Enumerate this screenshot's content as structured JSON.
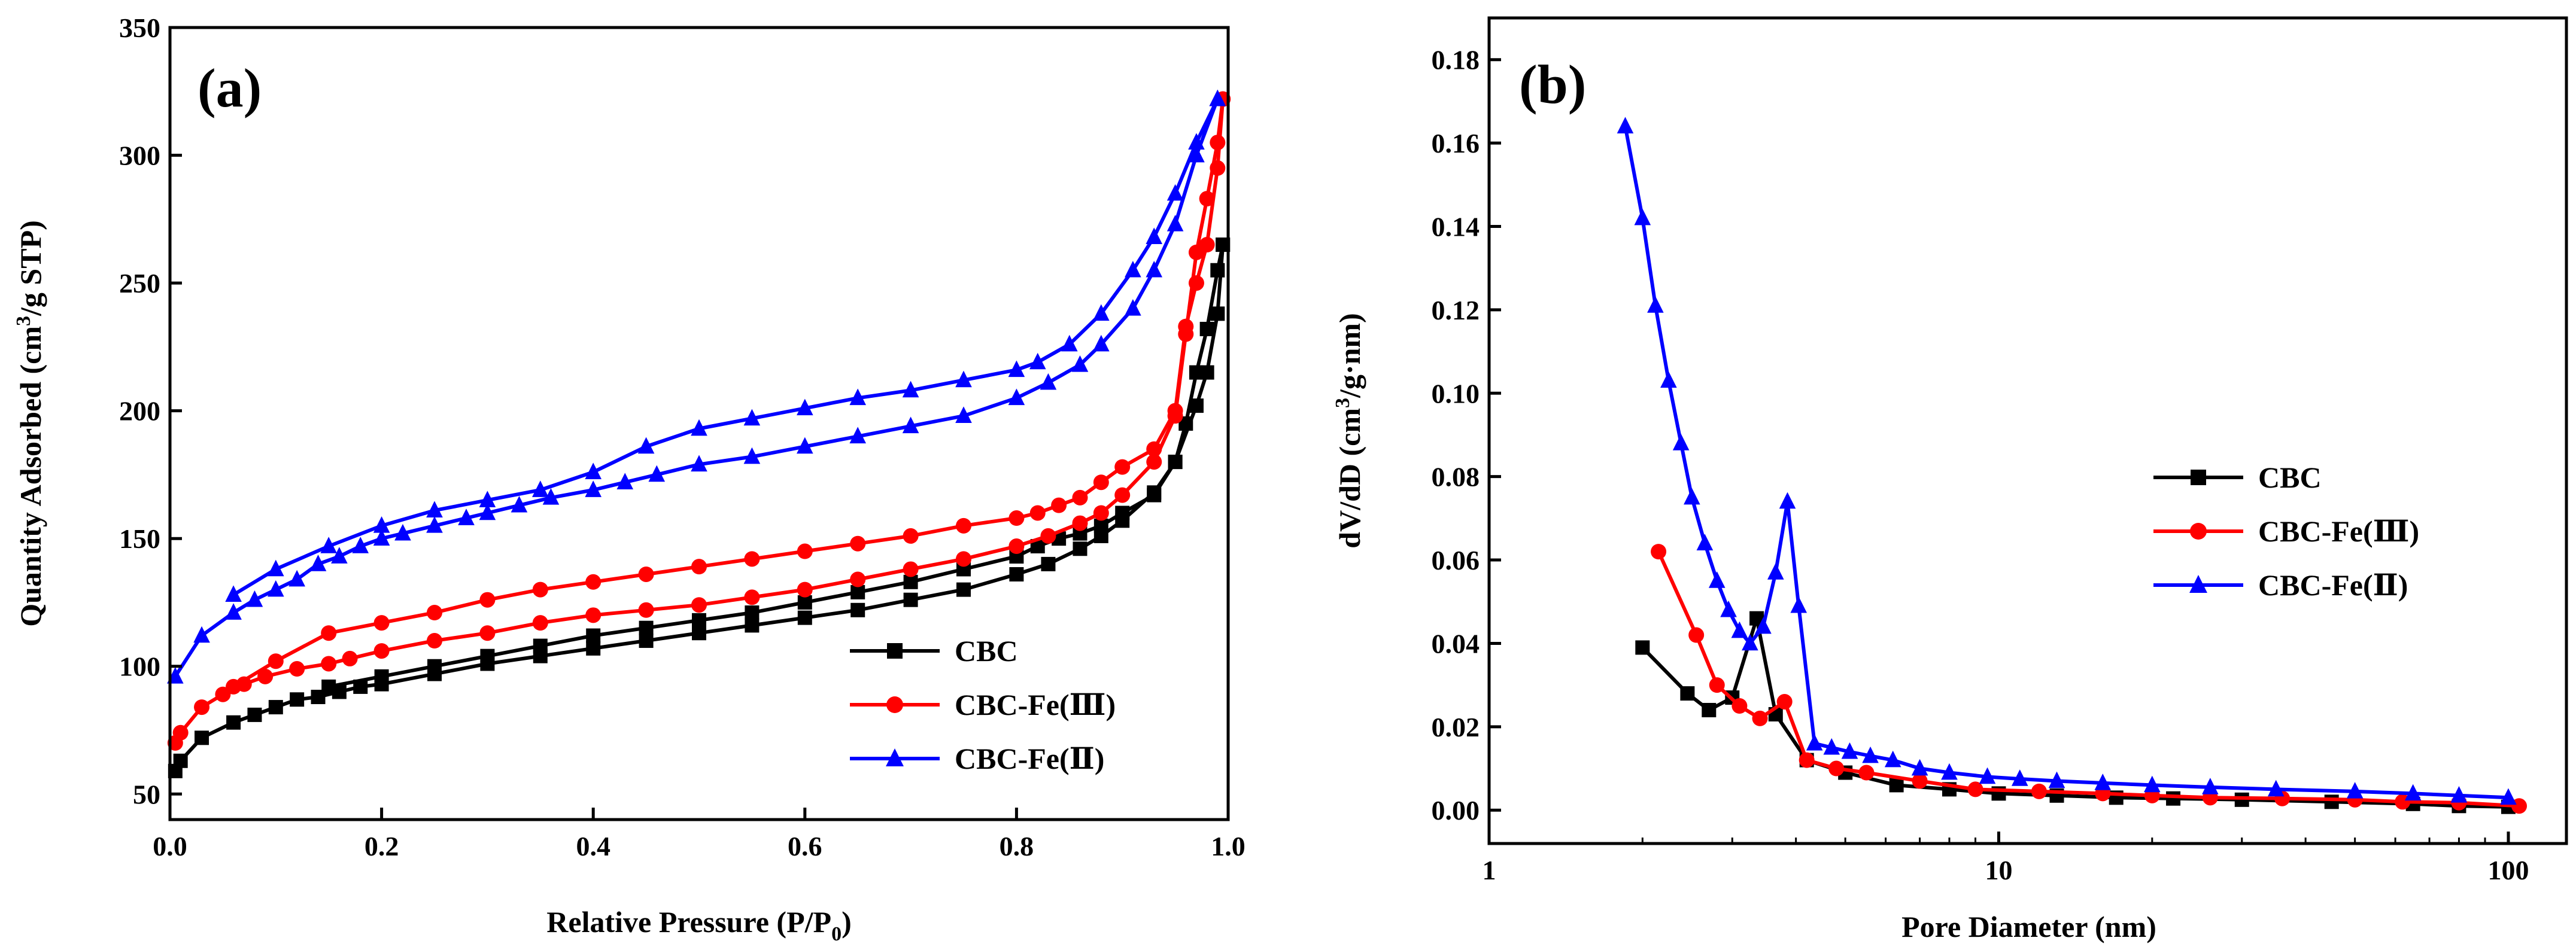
{
  "chart_data": [
    {
      "type": "line",
      "panel_label": "(a)",
      "xlabel": "Relative Pressure (P/P",
      "xlabel_sub": "0",
      "xlabel_end": ")",
      "ylabel_pre": "Quantity Adsorbed (cm",
      "ylabel_sup": "3",
      "ylabel_post": "/g STP)",
      "xlim": [
        0,
        1.0
      ],
      "ylim": [
        40,
        350
      ],
      "xticks": [
        0.0,
        0.2,
        0.4,
        0.6,
        0.8,
        1.0
      ],
      "xtick_labels": [
        "0.0",
        "0.2",
        "0.4",
        "0.6",
        "0.8",
        "1.0"
      ],
      "yticks": [
        50,
        100,
        150,
        200,
        250,
        300,
        350
      ],
      "ytick_labels": [
        "50",
        "100",
        "150",
        "200",
        "250",
        "300",
        "350"
      ],
      "legend_position": "bottom-right",
      "series": [
        {
          "name": "CBC",
          "color": "#000000",
          "marker": "square",
          "adsorption": [
            [
              0.005,
              59
            ],
            [
              0.01,
              63
            ],
            [
              0.03,
              72
            ],
            [
              0.06,
              78
            ],
            [
              0.08,
              81
            ],
            [
              0.1,
              84
            ],
            [
              0.12,
              87
            ],
            [
              0.14,
              88
            ],
            [
              0.16,
              90
            ],
            [
              0.18,
              92
            ],
            [
              0.2,
              93
            ],
            [
              0.25,
              97
            ],
            [
              0.3,
              101
            ],
            [
              0.35,
              104
            ],
            [
              0.4,
              107
            ],
            [
              0.45,
              110
            ],
            [
              0.5,
              113
            ],
            [
              0.55,
              116
            ],
            [
              0.6,
              119
            ],
            [
              0.65,
              122
            ],
            [
              0.7,
              126
            ],
            [
              0.75,
              130
            ],
            [
              0.8,
              136
            ],
            [
              0.83,
              140
            ],
            [
              0.86,
              146
            ],
            [
              0.88,
              151
            ],
            [
              0.9,
              157
            ],
            [
              0.93,
              168
            ],
            [
              0.95,
              180
            ],
            [
              0.97,
              202
            ],
            [
              0.98,
              215
            ],
            [
              0.99,
              238
            ],
            [
              0.995,
              265
            ]
          ],
          "desorption": [
            [
              0.995,
              265
            ],
            [
              0.99,
              255
            ],
            [
              0.98,
              232
            ],
            [
              0.97,
              215
            ],
            [
              0.96,
              195
            ],
            [
              0.95,
              180
            ],
            [
              0.93,
              167
            ],
            [
              0.9,
              160
            ],
            [
              0.88,
              155
            ],
            [
              0.86,
              152
            ],
            [
              0.84,
              150
            ],
            [
              0.82,
              147
            ],
            [
              0.8,
              143
            ],
            [
              0.75,
              138
            ],
            [
              0.7,
              133
            ],
            [
              0.65,
              129
            ],
            [
              0.6,
              125
            ],
            [
              0.55,
              121
            ],
            [
              0.5,
              118
            ],
            [
              0.45,
              115
            ],
            [
              0.4,
              112
            ],
            [
              0.35,
              108
            ],
            [
              0.3,
              104
            ],
            [
              0.25,
              100
            ],
            [
              0.2,
              96
            ],
            [
              0.15,
              92
            ]
          ]
        },
        {
          "name": "CBC-Fe(Ⅲ)",
          "color": "#ff0000",
          "marker": "circle",
          "adsorption": [
            [
              0.005,
              70
            ],
            [
              0.01,
              74
            ],
            [
              0.03,
              84
            ],
            [
              0.05,
              89
            ],
            [
              0.07,
              93
            ],
            [
              0.09,
              96
            ],
            [
              0.12,
              99
            ],
            [
              0.15,
              101
            ],
            [
              0.17,
              103
            ],
            [
              0.2,
              106
            ],
            [
              0.25,
              110
            ],
            [
              0.3,
              113
            ],
            [
              0.35,
              117
            ],
            [
              0.4,
              120
            ],
            [
              0.45,
              122
            ],
            [
              0.5,
              124
            ],
            [
              0.55,
              127
            ],
            [
              0.6,
              130
            ],
            [
              0.65,
              134
            ],
            [
              0.7,
              138
            ],
            [
              0.75,
              142
            ],
            [
              0.8,
              147
            ],
            [
              0.83,
              151
            ],
            [
              0.86,
              156
            ],
            [
              0.88,
              160
            ],
            [
              0.9,
              167
            ],
            [
              0.93,
              180
            ],
            [
              0.95,
              198
            ],
            [
              0.96,
              230
            ],
            [
              0.97,
              262
            ],
            [
              0.98,
              283
            ],
            [
              0.99,
              305
            ],
            [
              0.995,
              322
            ]
          ],
          "desorption": [
            [
              0.995,
              322
            ],
            [
              0.99,
              295
            ],
            [
              0.98,
              265
            ],
            [
              0.97,
              250
            ],
            [
              0.96,
              233
            ],
            [
              0.95,
              200
            ],
            [
              0.93,
              185
            ],
            [
              0.9,
              178
            ],
            [
              0.88,
              172
            ],
            [
              0.86,
              166
            ],
            [
              0.84,
              163
            ],
            [
              0.82,
              160
            ],
            [
              0.8,
              158
            ],
            [
              0.75,
              155
            ],
            [
              0.7,
              151
            ],
            [
              0.65,
              148
            ],
            [
              0.6,
              145
            ],
            [
              0.55,
              142
            ],
            [
              0.5,
              139
            ],
            [
              0.45,
              136
            ],
            [
              0.4,
              133
            ],
            [
              0.35,
              130
            ],
            [
              0.3,
              126
            ],
            [
              0.25,
              121
            ],
            [
              0.2,
              117
            ],
            [
              0.15,
              113
            ],
            [
              0.1,
              102
            ],
            [
              0.06,
              92
            ]
          ]
        },
        {
          "name": "CBC-Fe(Ⅱ)",
          "color": "#0000ff",
          "marker": "triangle",
          "adsorption": [
            [
              0.005,
              96
            ],
            [
              0.03,
              112
            ],
            [
              0.06,
              121
            ],
            [
              0.08,
              126
            ],
            [
              0.1,
              130
            ],
            [
              0.12,
              134
            ],
            [
              0.14,
              140
            ],
            [
              0.16,
              143
            ],
            [
              0.18,
              147
            ],
            [
              0.2,
              150
            ],
            [
              0.22,
              152
            ],
            [
              0.25,
              155
            ],
            [
              0.28,
              158
            ],
            [
              0.3,
              160
            ],
            [
              0.33,
              163
            ],
            [
              0.36,
              166
            ],
            [
              0.4,
              169
            ],
            [
              0.43,
              172
            ],
            [
              0.46,
              175
            ],
            [
              0.5,
              179
            ],
            [
              0.55,
              182
            ],
            [
              0.6,
              186
            ],
            [
              0.65,
              190
            ],
            [
              0.7,
              194
            ],
            [
              0.75,
              198
            ],
            [
              0.8,
              205
            ],
            [
              0.83,
              211
            ],
            [
              0.86,
              218
            ],
            [
              0.88,
              226
            ],
            [
              0.91,
              240
            ],
            [
              0.93,
              255
            ],
            [
              0.95,
              273
            ],
            [
              0.97,
              300
            ],
            [
              0.99,
              322
            ]
          ],
          "desorption": [
            [
              0.99,
              322
            ],
            [
              0.97,
              305
            ],
            [
              0.95,
              285
            ],
            [
              0.93,
              268
            ],
            [
              0.91,
              255
            ],
            [
              0.88,
              238
            ],
            [
              0.85,
              226
            ],
            [
              0.82,
              219
            ],
            [
              0.8,
              216
            ],
            [
              0.75,
              212
            ],
            [
              0.7,
              208
            ],
            [
              0.65,
              205
            ],
            [
              0.6,
              201
            ],
            [
              0.55,
              197
            ],
            [
              0.5,
              193
            ],
            [
              0.45,
              186
            ],
            [
              0.4,
              176
            ],
            [
              0.35,
              169
            ],
            [
              0.3,
              165
            ],
            [
              0.25,
              161
            ],
            [
              0.2,
              155
            ],
            [
              0.15,
              147
            ],
            [
              0.1,
              138
            ],
            [
              0.06,
              128
            ]
          ]
        }
      ]
    },
    {
      "type": "line",
      "panel_label": "(b)",
      "xlabel": "Pore Diameter (nm)",
      "ylabel_pre": "dV/dD (cm",
      "ylabel_sup": "3",
      "ylabel_post": "/g·nm)",
      "xscale": "log",
      "xlim": [
        1,
        130
      ],
      "ylim": [
        -0.008,
        0.19
      ],
      "xticks": [
        1,
        10,
        100
      ],
      "xtick_labels": [
        "1",
        "10",
        "100"
      ],
      "yticks": [
        0.0,
        0.02,
        0.04,
        0.06,
        0.08,
        0.1,
        0.12,
        0.14,
        0.16,
        0.18
      ],
      "ytick_labels": [
        "0.00",
        "0.02",
        "0.04",
        "0.06",
        "0.08",
        "0.10",
        "0.12",
        "0.14",
        "0.16",
        "0.18"
      ],
      "legend_position": "center-right",
      "series": [
        {
          "name": "CBC",
          "color": "#000000",
          "marker": "square",
          "points": [
            [
              2.0,
              0.039
            ],
            [
              2.45,
              0.028
            ],
            [
              2.7,
              0.024
            ],
            [
              3.0,
              0.027
            ],
            [
              3.35,
              0.046
            ],
            [
              3.65,
              0.023
            ],
            [
              4.2,
              0.012
            ],
            [
              5.0,
              0.009
            ],
            [
              6.3,
              0.006
            ],
            [
              8.0,
              0.005
            ],
            [
              10,
              0.004
            ],
            [
              13,
              0.0035
            ],
            [
              17,
              0.003
            ],
            [
              22,
              0.0028
            ],
            [
              30,
              0.0025
            ],
            [
              45,
              0.002
            ],
            [
              65,
              0.0015
            ],
            [
              80,
              0.001
            ],
            [
              100,
              0.0008
            ]
          ]
        },
        {
          "name": "CBC-Fe(Ⅲ)",
          "color": "#ff0000",
          "marker": "circle",
          "points": [
            [
              2.15,
              0.062
            ],
            [
              2.55,
              0.042
            ],
            [
              2.8,
              0.03
            ],
            [
              3.1,
              0.025
            ],
            [
              3.4,
              0.022
            ],
            [
              3.8,
              0.026
            ],
            [
              4.2,
              0.012
            ],
            [
              4.8,
              0.01
            ],
            [
              5.5,
              0.009
            ],
            [
              7,
              0.007
            ],
            [
              9,
              0.005
            ],
            [
              12,
              0.0045
            ],
            [
              16,
              0.004
            ],
            [
              20,
              0.0035
            ],
            [
              26,
              0.003
            ],
            [
              36,
              0.0028
            ],
            [
              50,
              0.0025
            ],
            [
              62,
              0.002
            ],
            [
              80,
              0.0018
            ],
            [
              105,
              0.001
            ]
          ]
        },
        {
          "name": "CBC-Fe(Ⅱ)",
          "color": "#0000ff",
          "marker": "triangle",
          "points": [
            [
              1.85,
              0.164
            ],
            [
              2.0,
              0.142
            ],
            [
              2.12,
              0.121
            ],
            [
              2.25,
              0.103
            ],
            [
              2.38,
              0.088
            ],
            [
              2.5,
              0.075
            ],
            [
              2.65,
              0.064
            ],
            [
              2.8,
              0.055
            ],
            [
              2.95,
              0.048
            ],
            [
              3.1,
              0.043
            ],
            [
              3.25,
              0.04
            ],
            [
              3.45,
              0.044
            ],
            [
              3.65,
              0.057
            ],
            [
              3.85,
              0.074
            ],
            [
              4.05,
              0.049
            ],
            [
              4.35,
              0.016
            ],
            [
              4.7,
              0.015
            ],
            [
              5.1,
              0.014
            ],
            [
              5.6,
              0.013
            ],
            [
              6.2,
              0.012
            ],
            [
              7,
              0.01
            ],
            [
              8,
              0.009
            ],
            [
              9.5,
              0.008
            ],
            [
              11,
              0.0075
            ],
            [
              13,
              0.007
            ],
            [
              16,
              0.0065
            ],
            [
              20,
              0.006
            ],
            [
              26,
              0.0055
            ],
            [
              35,
              0.005
            ],
            [
              50,
              0.0045
            ],
            [
              65,
              0.004
            ],
            [
              80,
              0.0035
            ],
            [
              100,
              0.003
            ]
          ]
        }
      ]
    }
  ]
}
